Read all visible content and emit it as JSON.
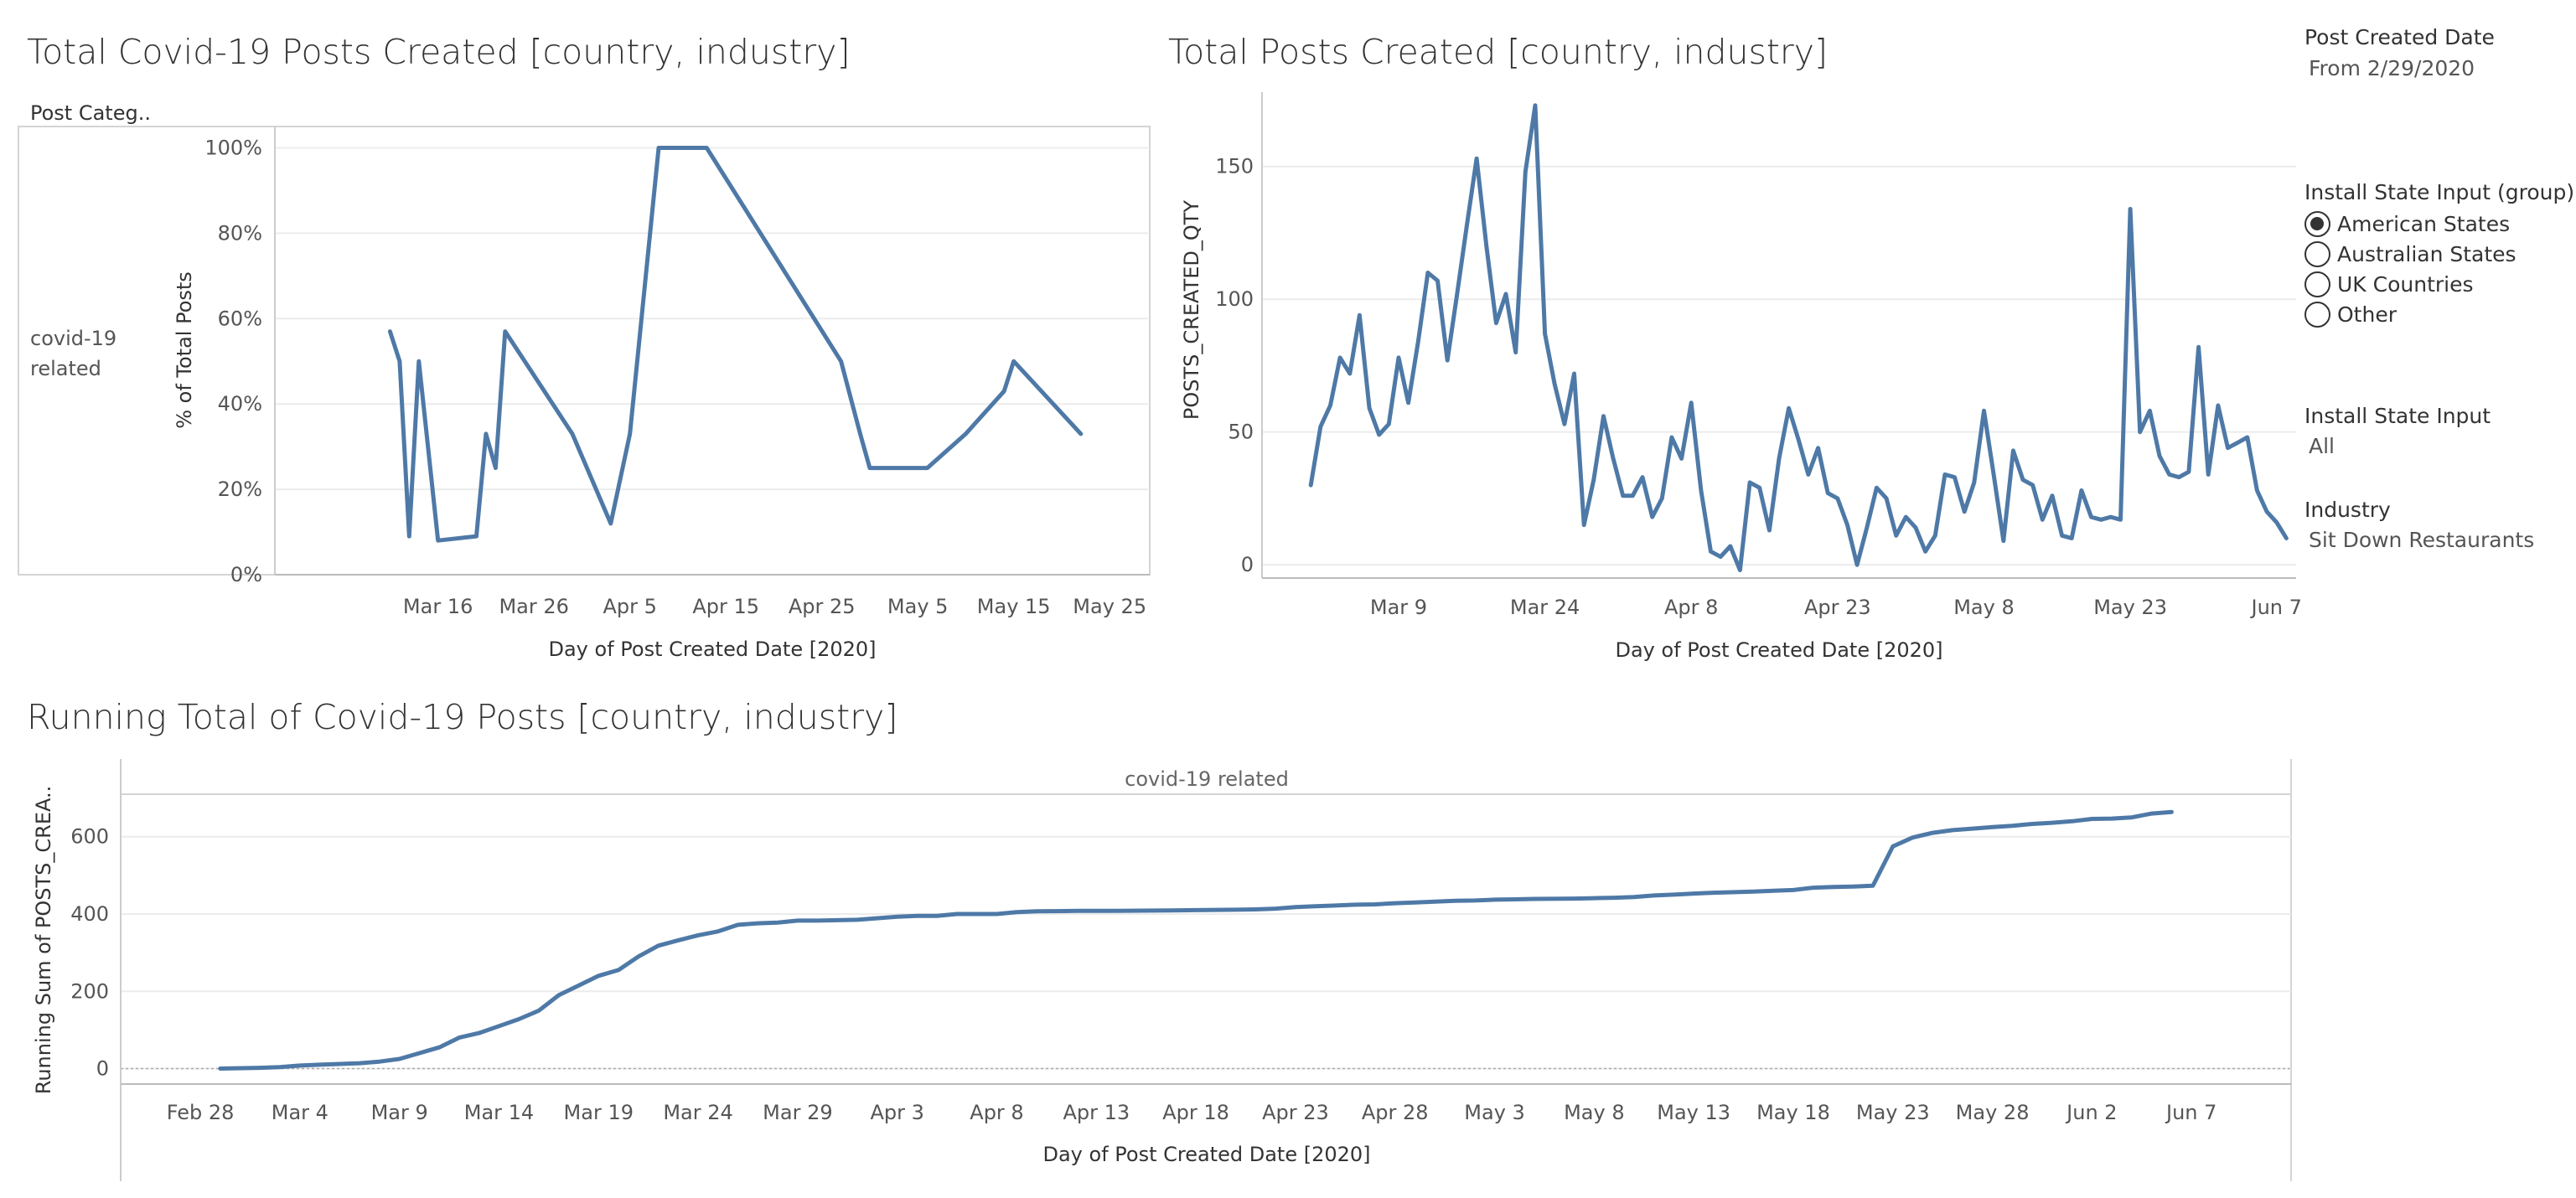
{
  "colors": {
    "line": "#4e79a7",
    "axis": "#888888",
    "grid": "#ececec",
    "text": "#333333"
  },
  "chart_data": [
    {
      "type": "line",
      "title": "Total Covid-19 Posts Created [country, industry]",
      "header_label": "Post Categ..",
      "row_label_lines": [
        "covid-19",
        "related"
      ],
      "xlabel": "Day of Post Created Date [2020]",
      "ylabel": "% of Total Posts",
      "xlim": [
        59,
        150
      ],
      "ylim": [
        0,
        1.05
      ],
      "x_ticks": [
        {
          "x": 76,
          "label": "Mar 16"
        },
        {
          "x": 86,
          "label": "Mar 26"
        },
        {
          "x": 96,
          "label": "Apr 5"
        },
        {
          "x": 106,
          "label": "Apr 15"
        },
        {
          "x": 116,
          "label": "Apr 25"
        },
        {
          "x": 126,
          "label": "May 5"
        },
        {
          "x": 136,
          "label": "May 15"
        },
        {
          "x": 146,
          "label": "May 25"
        }
      ],
      "y_ticks": [
        {
          "v": 0,
          "label": "0%"
        },
        {
          "v": 0.2,
          "label": "20%"
        },
        {
          "v": 0.4,
          "label": "40%"
        },
        {
          "v": 0.6,
          "label": "60%"
        },
        {
          "v": 0.8,
          "label": "80%"
        },
        {
          "v": 1.0,
          "label": "100%"
        }
      ],
      "series": [
        {
          "name": "covid-19 related",
          "x": [
            71,
            72,
            73,
            74,
            76,
            80,
            81,
            82,
            83,
            90,
            94,
            96,
            99,
            100,
            104,
            118,
            120,
            121,
            125,
            126,
            127,
            131,
            135,
            136,
            143
          ],
          "y": [
            0.57,
            0.5,
            0.09,
            0.5,
            0.08,
            0.09,
            0.33,
            0.25,
            0.57,
            0.33,
            0.12,
            0.33,
            1.0,
            1.0,
            1.0,
            0.5,
            0.33,
            0.25,
            0.25,
            0.25,
            0.25,
            0.33,
            0.43,
            0.5,
            0.33
          ]
        }
      ]
    },
    {
      "type": "line",
      "title": "Total Posts Created [country, industry]",
      "xlabel": "Day of Post Created Date [2020]",
      "ylabel": "POSTS_CREATED_QTY",
      "xlim": [
        55,
        161
      ],
      "ylim": [
        -5,
        178
      ],
      "x_ticks": [
        {
          "x": 69,
          "label": "Mar 9"
        },
        {
          "x": 84,
          "label": "Mar 24"
        },
        {
          "x": 99,
          "label": "Apr 8"
        },
        {
          "x": 114,
          "label": "Apr 23"
        },
        {
          "x": 129,
          "label": "May 8"
        },
        {
          "x": 144,
          "label": "May 23"
        },
        {
          "x": 159,
          "label": "Jun 7"
        }
      ],
      "y_ticks": [
        {
          "v": 0,
          "label": "0"
        },
        {
          "v": 50,
          "label": "50"
        },
        {
          "v": 100,
          "label": "100"
        },
        {
          "v": 150,
          "label": "150"
        }
      ],
      "series": [
        {
          "name": "Total posts",
          "x": [
            60,
            61,
            62,
            63,
            64,
            65,
            66,
            67,
            68,
            69,
            70,
            71,
            72,
            73,
            74,
            75,
            76,
            77,
            78,
            79,
            80,
            81,
            82,
            83,
            84,
            85,
            86,
            87,
            88,
            89,
            90,
            91,
            92,
            93,
            94,
            95,
            96,
            97,
            98,
            99,
            100,
            101,
            102,
            103,
            104,
            105,
            106,
            107,
            108,
            109,
            110,
            111,
            112,
            113,
            114,
            115,
            116,
            117,
            118,
            119,
            120,
            121,
            122,
            123,
            124,
            125,
            126,
            127,
            128,
            129,
            130,
            131,
            132,
            133,
            134,
            135,
            136,
            137,
            138,
            139,
            140,
            141,
            142,
            143,
            144,
            145,
            146,
            147,
            148,
            149,
            150,
            151,
            152,
            153,
            154,
            155,
            156,
            157,
            158,
            159,
            160
          ],
          "y": [
            30,
            52,
            60,
            78,
            72,
            94,
            59,
            49,
            53,
            78,
            61,
            84,
            110,
            107,
            77,
            102,
            128,
            153,
            120,
            91,
            102,
            80,
            148,
            173,
            87,
            68,
            53,
            72,
            15,
            32,
            56,
            40,
            26,
            26,
            33,
            18,
            25,
            48,
            40,
            61,
            28,
            5,
            3,
            7,
            -2,
            31,
            29,
            13,
            40,
            59,
            47,
            34,
            44,
            27,
            25,
            15,
            0,
            14,
            29,
            25,
            11,
            18,
            14,
            5,
            11,
            34,
            33,
            20,
            31,
            58,
            34,
            9,
            43,
            32,
            30,
            17,
            26,
            11,
            10,
            28,
            18,
            17,
            18,
            17,
            134,
            50,
            58,
            41,
            34,
            33,
            35,
            82,
            34,
            60,
            44,
            46,
            48,
            28,
            20,
            16,
            10
          ]
        }
      ]
    },
    {
      "type": "line",
      "title": "Running Total of Covid-19 Posts [country, industry]",
      "panel_header": "covid-19 related",
      "xlabel": "Day of Post Created Date [2020]",
      "ylabel": "Running Sum of POSTS_CREA..",
      "xlim": [
        55,
        164
      ],
      "ylim": [
        -40,
        710
      ],
      "x_ticks": [
        {
          "x": 59,
          "label": "Feb 28"
        },
        {
          "x": 64,
          "label": "Mar 4"
        },
        {
          "x": 69,
          "label": "Mar 9"
        },
        {
          "x": 74,
          "label": "Mar 14"
        },
        {
          "x": 79,
          "label": "Mar 19"
        },
        {
          "x": 84,
          "label": "Mar 24"
        },
        {
          "x": 89,
          "label": "Mar 29"
        },
        {
          "x": 94,
          "label": "Apr 3"
        },
        {
          "x": 99,
          "label": "Apr 8"
        },
        {
          "x": 104,
          "label": "Apr 13"
        },
        {
          "x": 109,
          "label": "Apr 18"
        },
        {
          "x": 114,
          "label": "Apr 23"
        },
        {
          "x": 119,
          "label": "Apr 28"
        },
        {
          "x": 124,
          "label": "May 3"
        },
        {
          "x": 129,
          "label": "May 8"
        },
        {
          "x": 134,
          "label": "May 13"
        },
        {
          "x": 139,
          "label": "May 18"
        },
        {
          "x": 144,
          "label": "May 23"
        },
        {
          "x": 149,
          "label": "May 28"
        },
        {
          "x": 154,
          "label": "Jun 2"
        },
        {
          "x": 159,
          "label": "Jun 7"
        }
      ],
      "y_ticks": [
        {
          "v": 0,
          "label": "0"
        },
        {
          "v": 200,
          "label": "200"
        },
        {
          "v": 400,
          "label": "400"
        },
        {
          "v": 600,
          "label": "600"
        }
      ],
      "series": [
        {
          "name": "covid-19 related",
          "x": [
            60,
            62,
            63,
            64,
            65,
            66,
            67,
            68,
            69,
            70,
            71,
            72,
            73,
            74,
            75,
            76,
            77,
            78,
            79,
            80,
            81,
            82,
            83,
            84,
            85,
            86,
            87,
            88,
            89,
            90,
            92,
            94,
            95,
            96,
            97,
            99,
            100,
            101,
            103,
            105,
            107,
            109,
            111,
            112,
            113,
            114,
            115,
            116,
            117,
            118,
            119,
            120,
            121,
            122,
            123,
            124,
            125,
            126,
            128,
            129,
            130,
            131,
            132,
            133,
            134,
            135,
            137,
            138,
            139,
            140,
            141,
            142,
            143,
            144,
            145,
            146,
            147,
            148,
            149,
            150,
            151,
            152,
            153,
            154,
            155,
            156,
            157,
            158
          ],
          "y": [
            0,
            2,
            4,
            8,
            10,
            12,
            14,
            18,
            25,
            40,
            55,
            80,
            92,
            110,
            128,
            150,
            190,
            215,
            240,
            255,
            290,
            318,
            332,
            345,
            355,
            372,
            376,
            378,
            383,
            383,
            385,
            393,
            395,
            395,
            400,
            400,
            405,
            407,
            408,
            408,
            409,
            410,
            411,
            412,
            414,
            418,
            420,
            422,
            424,
            425,
            428,
            430,
            432,
            434,
            435,
            437,
            438,
            439,
            440,
            441,
            442,
            444,
            448,
            450,
            453,
            455,
            458,
            460,
            462,
            468,
            470,
            471,
            473,
            575,
            598,
            610,
            617,
            621,
            625,
            628,
            633,
            636,
            640,
            646,
            647,
            650,
            660,
            664
          ]
        }
      ]
    }
  ],
  "filters": {
    "post_created_date": {
      "label": "Post Created Date",
      "value": "From 2/29/2020"
    },
    "install_state_group": {
      "label": "Install State Input (group)",
      "options": [
        "American States",
        "Australian States",
        "UK Countries",
        "Other"
      ],
      "selected": "American States"
    },
    "install_state_input": {
      "label": "Install State Input",
      "value": "All"
    },
    "industry": {
      "label": "Industry",
      "value": "Sit Down Restaurants"
    }
  }
}
